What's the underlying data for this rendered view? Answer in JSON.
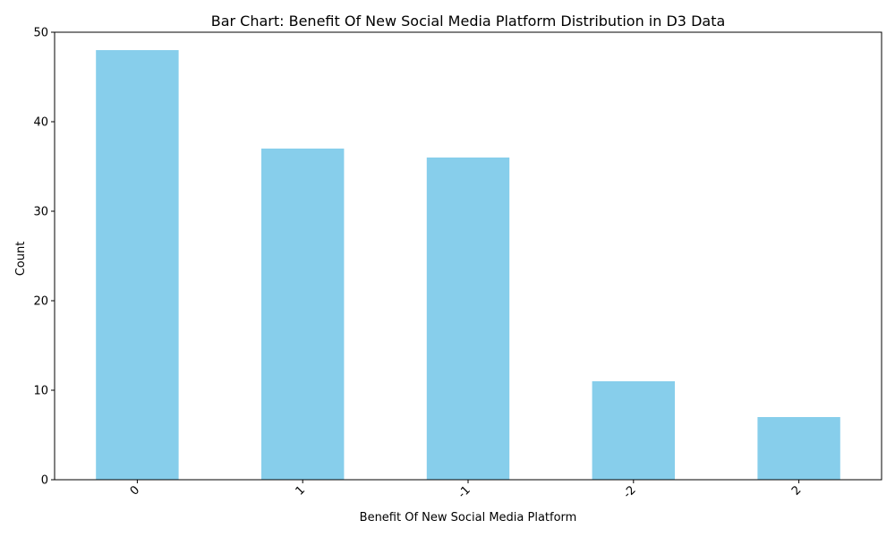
{
  "chart_data": {
    "type": "bar",
    "title": "Bar Chart: Benefit Of New Social Media Platform Distribution in D3 Data",
    "xlabel": "Benefit Of New Social Media Platform",
    "ylabel": "Count",
    "categories": [
      "0",
      "1",
      "-1",
      "-2",
      "2"
    ],
    "values": [
      48,
      37,
      36,
      11,
      7
    ],
    "ylim": [
      0,
      50
    ],
    "yticks": [
      0,
      10,
      20,
      30,
      40,
      50
    ],
    "bar_color": "#87CEEB",
    "grid": false,
    "legend": "none"
  }
}
